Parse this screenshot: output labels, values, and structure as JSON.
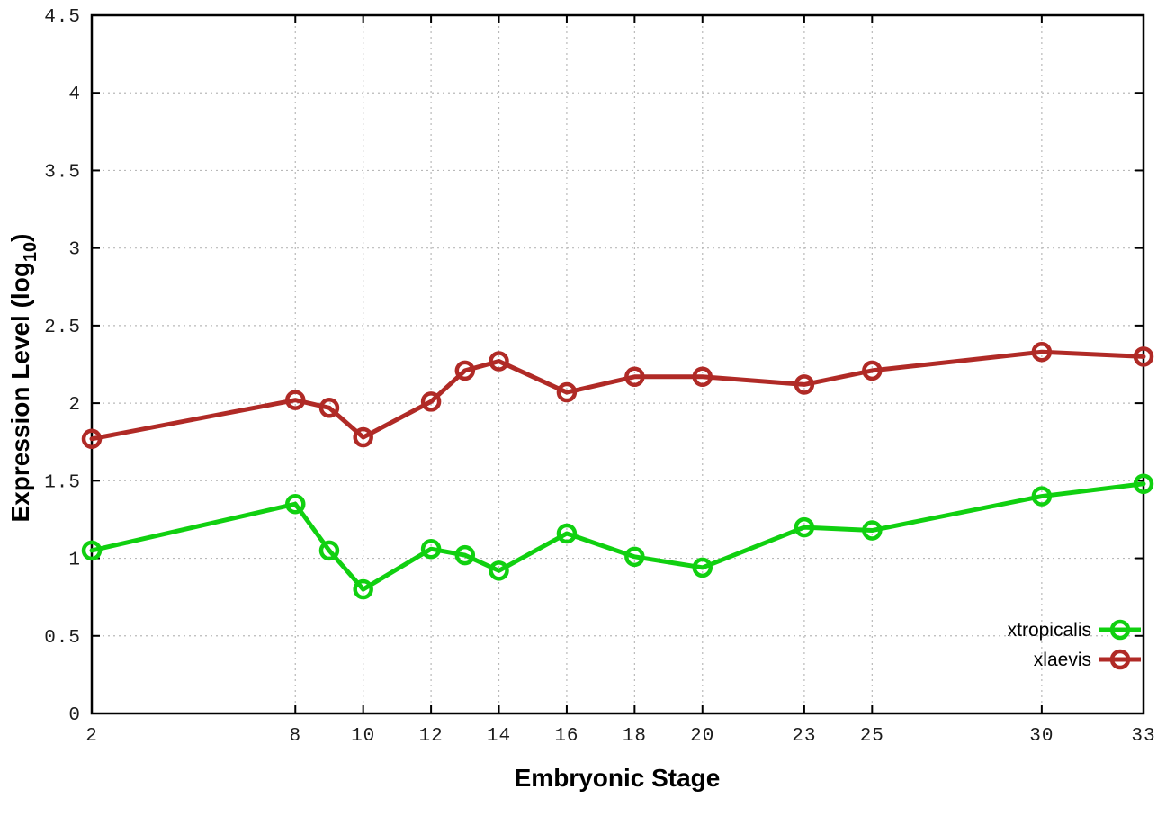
{
  "chart_data": {
    "type": "line",
    "title": "",
    "xlabel": "Embryonic Stage",
    "ylabel": "Expression Level (log10)",
    "ylabel_parts": {
      "base": "Expression Level (log",
      "sub": "10",
      "close": ")"
    },
    "xlim": [
      2,
      33
    ],
    "ylim": [
      0,
      4.5
    ],
    "grid": true,
    "grid_style": "dotted",
    "legend_position": "inside bottom-right",
    "x": [
      2,
      8,
      9,
      10,
      12,
      13,
      14,
      16,
      18,
      20,
      23,
      25,
      30,
      33
    ],
    "xticks": [
      2,
      8,
      10,
      12,
      14,
      16,
      18,
      20,
      23,
      25,
      30,
      33
    ],
    "xtick_labels": [
      "2",
      "8",
      "10",
      "12",
      "14",
      "16",
      "18",
      "20",
      "23",
      "25",
      "30",
      "33"
    ],
    "yticks": [
      0,
      0.5,
      1,
      1.5,
      2,
      2.5,
      3,
      3.5,
      4,
      4.5
    ],
    "ytick_labels": [
      "0",
      "0.5",
      "1",
      "1.5",
      "2",
      "2.5",
      "3",
      "3.5",
      "4",
      "4.5"
    ],
    "series": [
      {
        "name": "xtropicalis",
        "color": "#10d010",
        "marker": "open-circle",
        "values": [
          1.05,
          1.35,
          1.05,
          0.8,
          1.06,
          1.02,
          0.92,
          1.16,
          1.01,
          0.94,
          1.2,
          1.18,
          1.4,
          1.48
        ]
      },
      {
        "name": "xlaevis",
        "color": "#b02a26",
        "marker": "open-circle",
        "values": [
          1.77,
          2.02,
          1.97,
          1.78,
          2.01,
          2.21,
          2.27,
          2.07,
          2.17,
          2.17,
          2.12,
          2.21,
          2.33,
          2.3
        ]
      }
    ],
    "frame_color": "#000000",
    "grid_color": "#b9b9b9",
    "background": "#ffffff"
  }
}
